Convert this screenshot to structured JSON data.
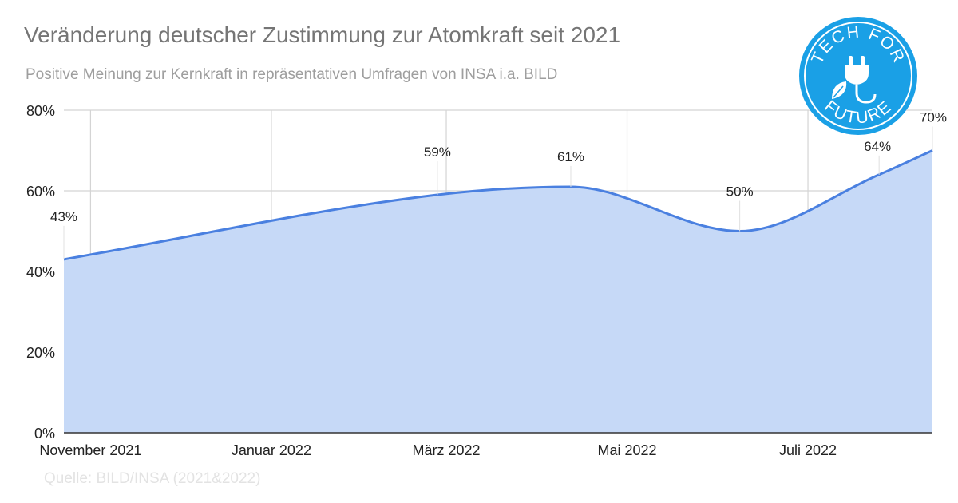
{
  "title": "Veränderung deutscher Zustimmung zur Atomkraft seit 2021",
  "subtitle": "Positive Meinung zur Kernkraft in repräsentativen Umfragen von INSA i.a. BILD",
  "source": "Quelle: BILD/INSA (2021&2022)",
  "logo": {
    "text_top": "TECH FOR",
    "text_bottom": "FUTURE",
    "color": "#1aa0e6",
    "icon": "plug-leaf-icon"
  },
  "colors": {
    "line": "#4a80e0",
    "fill": "#c6d9f7",
    "grid": "#d4d4d4",
    "axis": "#333333"
  },
  "chart_data": {
    "type": "area",
    "title": "Veränderung deutscher Zustimmung zur Atomkraft seit 2021",
    "subtitle": "Positive Meinung zur Kernkraft in repräsentativen Umfragen von INSA i.a. BILD",
    "x_tick_labels": [
      "November 2021",
      "Januar 2022",
      "März 2022",
      "Mai 2022",
      "Juli 2022"
    ],
    "y_tick_labels": [
      "0%",
      "20%",
      "40%",
      "60%",
      "80%"
    ],
    "ylim": [
      0,
      80
    ],
    "y_unit": "%",
    "grid": true,
    "series": [
      {
        "values": [
          {
            "x": "2021-10-23",
            "y": 43,
            "label": "43%"
          },
          {
            "x": "2022-02-26",
            "y": 59,
            "label": "59%"
          },
          {
            "x": "2022-04-12",
            "y": 61,
            "label": "61%"
          },
          {
            "x": "2022-06-08",
            "y": 50,
            "label": "50%"
          },
          {
            "x": "2022-07-25",
            "y": 64,
            "label": "64%"
          },
          {
            "x": "2022-08-12",
            "y": 70,
            "label": "70%"
          }
        ]
      }
    ]
  }
}
